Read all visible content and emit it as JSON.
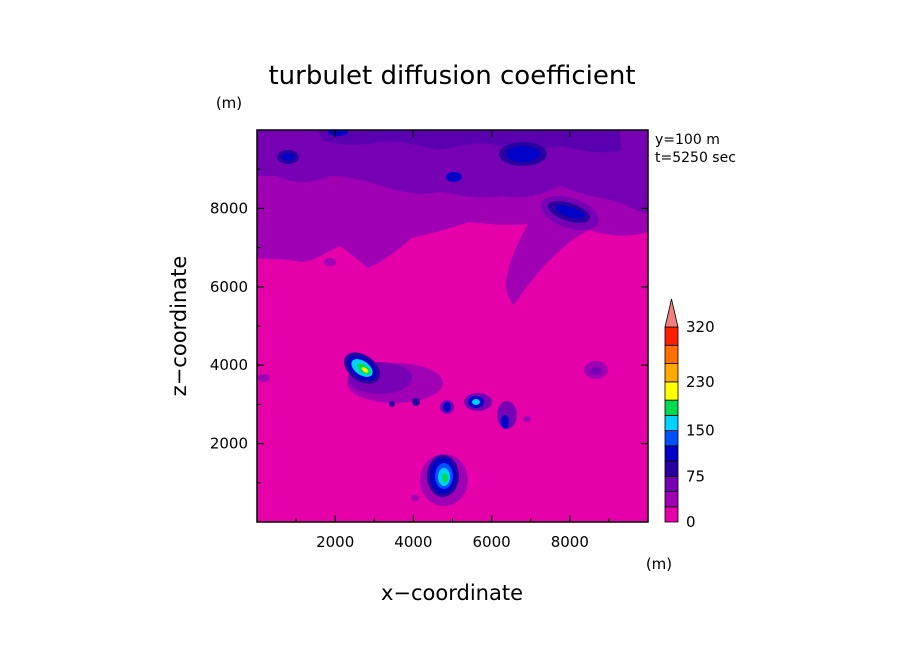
{
  "chart_data": {
    "type": "heatmap",
    "title": "turbulet diffusion coefficient",
    "xlabel": "x−coordinate",
    "ylabel": "z−coordinate",
    "x_unit": "(m)",
    "y_unit": "(m)",
    "xlim": [
      0,
      10000
    ],
    "ylim": [
      0,
      10000
    ],
    "x_ticks": [
      2000,
      4000,
      6000,
      8000
    ],
    "y_ticks": [
      2000,
      4000,
      6000,
      8000
    ],
    "x_tick_labels": [
      "2000",
      "4000",
      "6000",
      "8000"
    ],
    "y_tick_labels": [
      "2000",
      "4000",
      "6000",
      "8000"
    ],
    "annotations": [
      "y=100 m",
      "t=5250 sec"
    ],
    "colorbar": {
      "levels": [
        0,
        25,
        50,
        75,
        100,
        125,
        150,
        175,
        200,
        230,
        260,
        290,
        320
      ],
      "tick_labels": [
        "0",
        "75",
        "150",
        "230",
        "320"
      ],
      "tick_values": [
        0,
        75,
        150,
        230,
        320
      ],
      "colors": [
        "#e600aa",
        "#a000b4",
        "#7800b4",
        "#2800a0",
        "#0000c8",
        "#0050ff",
        "#00d2ff",
        "#00dc50",
        "#ffff00",
        "#ffaa00",
        "#ff6e00",
        "#ff1e00"
      ],
      "extend_color": "#f08080"
    },
    "background_value_color": "#e600aa",
    "features": [
      {
        "name": "main-blob-left",
        "x": 2900,
        "z": 4000,
        "peak": 200
      },
      {
        "name": "main-blob-bottom",
        "x": 4800,
        "z": 1200,
        "peak": 175
      },
      {
        "name": "upper-right-blob",
        "x": 8000,
        "z": 7800,
        "peak": 100
      },
      {
        "name": "top-blob",
        "x": 6500,
        "z": 9200,
        "peak": 100
      }
    ]
  }
}
